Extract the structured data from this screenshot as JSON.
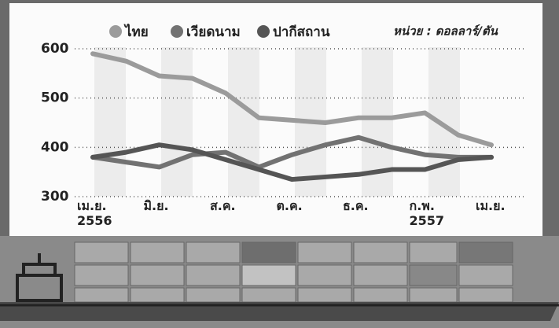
{
  "chart_data": {
    "type": "line",
    "unit_label": "หน่วย : ดอลลาร์/ตัน",
    "categories": [
      "เม.ย. 2556",
      null,
      "มิ.ย.",
      null,
      "ส.ค.",
      null,
      "ต.ค.",
      null,
      "ธ.ค.",
      null,
      "ก.พ. 2557",
      null,
      "เม.ย."
    ],
    "series": [
      {
        "name": "ไทย",
        "color": "#9b9b9b",
        "values": [
          590,
          575,
          545,
          540,
          510,
          460,
          455,
          450,
          460,
          460,
          470,
          425,
          405
        ]
      },
      {
        "name": "เวียดนาม",
        "color": "#727272",
        "values": [
          380,
          370,
          360,
          385,
          390,
          360,
          385,
          405,
          420,
          400,
          385,
          380,
          380
        ]
      },
      {
        "name": "ปากีสถาน",
        "color": "#555555",
        "values": [
          380,
          390,
          405,
          395,
          375,
          355,
          335,
          340,
          345,
          355,
          355,
          375,
          380
        ]
      }
    ],
    "ylim": [
      300,
      600
    ],
    "yticks": [
      300,
      400,
      500,
      600
    ],
    "grid": true
  }
}
